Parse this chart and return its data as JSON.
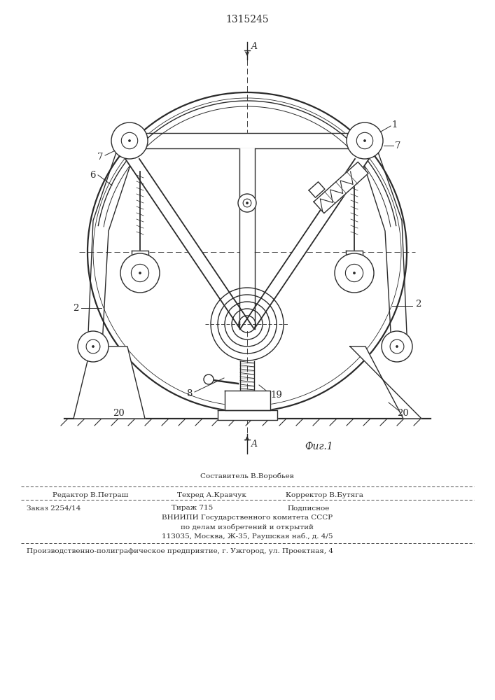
{
  "patent_number": "1315245",
  "bg_color": "#ffffff",
  "line_color": "#2a2a2a",
  "lw": 1.0,
  "lw_thick": 1.6,
  "lw_thin": 0.6,
  "footer": {
    "composer_label": "Составитель В.Воробьев",
    "editor_label": "Редактор В.Петраш",
    "techred_label": "Техред А.Кравчук",
    "corrector_label": "Корректор В.Бутяга",
    "order": "Заказ 2254/14",
    "tirazh": "Тираж 715",
    "podpisnoe": "Подписное",
    "vnipi1": "ВНИИПИ Государственного комитета СССР",
    "vnipi2": "по делам изобретений и открытий",
    "vnipi3": "113035, Москва, Ж-35, Раушская наб., д. 4/5",
    "production": "Производственно-полиграфическое предприятие, г. Ужгород, ул. Проектная, 4"
  }
}
